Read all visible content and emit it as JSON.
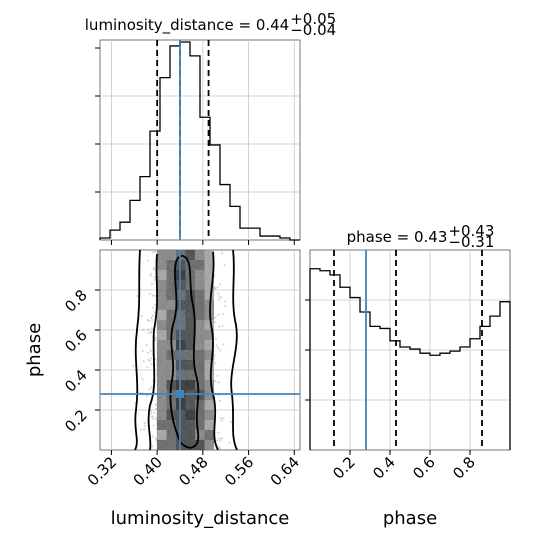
{
  "chart_data": {
    "type": "corner",
    "parameters": [
      "luminosity_distance",
      "phase"
    ],
    "truths": {
      "luminosity_distance": 0.44,
      "phase": 0.28
    },
    "titles": {
      "luminosity_distance": {
        "prefix": "luminosity_distance = ",
        "value": "0.44",
        "upper": "+0.05",
        "lower": "−0.04"
      },
      "phase": {
        "prefix": "phase = ",
        "value": "0.43",
        "upper": "+0.43",
        "lower": "−0.31"
      }
    },
    "xlabels": [
      "luminosity_distance",
      "phase"
    ],
    "ylabel": "phase",
    "ticks": {
      "luminosity_distance": [
        "0.32",
        "0.40",
        "0.48",
        "0.56",
        "0.64"
      ],
      "phase_x": [
        "0.2",
        "0.4",
        "0.6",
        "0.8"
      ],
      "phase_y": [
        "0.2",
        "0.4",
        "0.6",
        "0.8"
      ]
    },
    "ranges": {
      "luminosity_distance": [
        0.3,
        0.65
      ],
      "phase": [
        0.0,
        1.0
      ]
    },
    "hist_luminosity_distance": {
      "edges": [
        0.3,
        0.3175,
        0.335,
        0.3525,
        0.37,
        0.3875,
        0.405,
        0.4225,
        0.44,
        0.4575,
        0.475,
        0.4925,
        0.51,
        0.5275,
        0.545,
        0.5625,
        0.58,
        0.5975,
        0.615,
        0.6325,
        0.65
      ],
      "counts": [
        0.01,
        0.05,
        0.09,
        0.2,
        0.32,
        0.55,
        0.82,
        0.98,
        1.0,
        0.93,
        0.62,
        0.48,
        0.28,
        0.17,
        0.06,
        0.06,
        0.02,
        0.02,
        0.01,
        0.0
      ],
      "quantiles": [
        0.4,
        0.44,
        0.49
      ]
    },
    "hist_phase": {
      "edges": [
        0.0,
        0.05,
        0.1,
        0.15,
        0.2,
        0.25,
        0.3,
        0.35,
        0.4,
        0.45,
        0.5,
        0.55,
        0.6,
        0.65,
        0.7,
        0.75,
        0.8,
        0.85,
        0.9,
        0.95,
        1.0
      ],
      "counts": [
        0.88,
        0.87,
        0.85,
        0.79,
        0.74,
        0.67,
        0.6,
        0.59,
        0.53,
        0.5,
        0.49,
        0.47,
        0.46,
        0.47,
        0.48,
        0.5,
        0.54,
        0.6,
        0.65,
        0.72
      ],
      "quantiles": [
        0.12,
        0.43,
        0.86
      ]
    },
    "grid": true
  }
}
